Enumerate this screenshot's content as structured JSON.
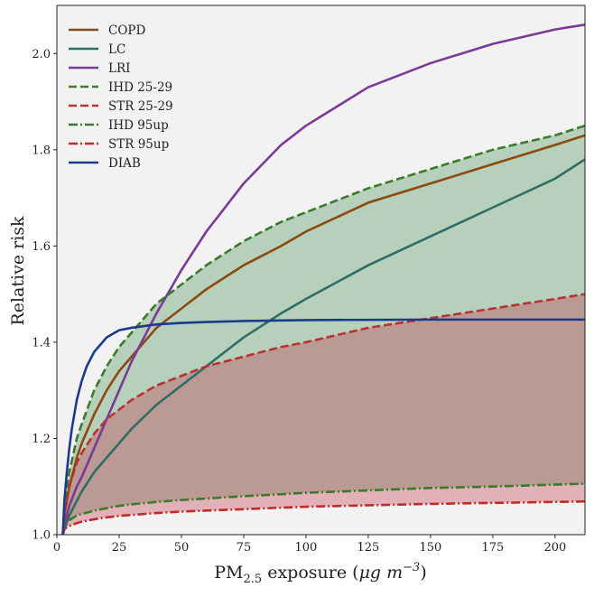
{
  "chart_data": {
    "type": "line",
    "xlabel_main": "PM",
    "xlabel_sub": "2.5",
    "xlabel_rest": " exposure (",
    "xlabel_unit": "μg m",
    "xlabel_exp": "−3",
    "xlabel_close": ")",
    "ylabel": "Relative risk",
    "xlim": [
      0,
      212
    ],
    "ylim": [
      1.0,
      2.1
    ],
    "xticks": [
      0,
      25,
      50,
      75,
      100,
      125,
      150,
      175,
      200
    ],
    "xtick_labels": [
      "0",
      "25",
      "50",
      "75",
      "100",
      "125",
      "150",
      "175",
      "200"
    ],
    "yticks": [
      1.0,
      1.2,
      1.4,
      1.6,
      1.8,
      2.0
    ],
    "ytick_labels": [
      "1.0",
      "1.2",
      "1.4",
      "1.6",
      "1.8",
      "2.0"
    ],
    "background": "#f2f2f2",
    "legend_position": "top-left",
    "fills": [
      {
        "between": [
          "IHD 25-29",
          "IHD 95up"
        ],
        "color": "#3a8a4a",
        "opacity": 0.32
      },
      {
        "between": [
          "STR 25-29",
          "STR 95up"
        ],
        "color": "#c0283a",
        "opacity": 0.32
      }
    ],
    "series": [
      {
        "name": "COPD",
        "color": "#8b4a0f",
        "dash": "solid",
        "x": [
          2.4,
          3,
          5,
          8,
          10,
          15,
          20,
          25,
          30,
          40,
          50,
          60,
          75,
          90,
          100,
          125,
          150,
          175,
          200,
          212
        ],
        "y": [
          1.0,
          1.04,
          1.1,
          1.16,
          1.19,
          1.25,
          1.3,
          1.34,
          1.37,
          1.43,
          1.47,
          1.51,
          1.56,
          1.6,
          1.63,
          1.69,
          1.73,
          1.77,
          1.81,
          1.83
        ]
      },
      {
        "name": "LC",
        "color": "#2e6e64",
        "dash": "solid",
        "x": [
          2.4,
          3,
          5,
          8,
          10,
          15,
          20,
          25,
          30,
          40,
          50,
          60,
          75,
          90,
          100,
          125,
          150,
          175,
          200,
          212
        ],
        "y": [
          1.0,
          1.01,
          1.04,
          1.07,
          1.09,
          1.13,
          1.16,
          1.19,
          1.22,
          1.27,
          1.31,
          1.35,
          1.41,
          1.46,
          1.49,
          1.56,
          1.62,
          1.68,
          1.74,
          1.78
        ]
      },
      {
        "name": "LRI",
        "color": "#7b3a96",
        "dash": "solid",
        "x": [
          2.4,
          3,
          5,
          8,
          10,
          15,
          20,
          25,
          30,
          40,
          50,
          60,
          75,
          90,
          100,
          125,
          150,
          175,
          200,
          212
        ],
        "y": [
          1.0,
          1.02,
          1.06,
          1.1,
          1.12,
          1.18,
          1.24,
          1.3,
          1.36,
          1.46,
          1.55,
          1.63,
          1.73,
          1.81,
          1.85,
          1.93,
          1.98,
          2.02,
          2.05,
          2.06
        ]
      },
      {
        "name": "IHD 25-29",
        "color": "#3a7a2a",
        "dash": "dashed",
        "x": [
          2.4,
          3,
          5,
          8,
          10,
          15,
          20,
          25,
          30,
          40,
          50,
          60,
          75,
          90,
          100,
          125,
          150,
          175,
          200,
          212
        ],
        "y": [
          1.0,
          1.06,
          1.13,
          1.2,
          1.23,
          1.3,
          1.35,
          1.39,
          1.42,
          1.48,
          1.52,
          1.56,
          1.61,
          1.65,
          1.67,
          1.72,
          1.76,
          1.8,
          1.83,
          1.85
        ]
      },
      {
        "name": "STR 25-29",
        "color": "#b83232",
        "dash": "dashed",
        "x": [
          2.4,
          3,
          5,
          8,
          10,
          15,
          20,
          25,
          30,
          40,
          50,
          60,
          75,
          90,
          100,
          125,
          150,
          175,
          200,
          212
        ],
        "y": [
          1.0,
          1.05,
          1.1,
          1.15,
          1.17,
          1.21,
          1.24,
          1.26,
          1.28,
          1.31,
          1.33,
          1.35,
          1.37,
          1.39,
          1.4,
          1.43,
          1.45,
          1.47,
          1.49,
          1.5
        ]
      },
      {
        "name": "IHD 95up",
        "color": "#3a7a2a",
        "dash": "dashdot",
        "x": [
          2.4,
          3,
          5,
          8,
          10,
          15,
          20,
          25,
          30,
          40,
          50,
          60,
          75,
          90,
          100,
          125,
          150,
          175,
          200,
          212
        ],
        "y": [
          1.0,
          1.02,
          1.03,
          1.04,
          1.043,
          1.05,
          1.055,
          1.06,
          1.063,
          1.068,
          1.072,
          1.075,
          1.08,
          1.084,
          1.087,
          1.092,
          1.097,
          1.1,
          1.104,
          1.106
        ]
      },
      {
        "name": "STR 95up",
        "color": "#c02a2a",
        "dash": "dashdot",
        "x": [
          2.4,
          3,
          5,
          8,
          10,
          15,
          20,
          25,
          30,
          40,
          50,
          60,
          75,
          90,
          100,
          125,
          150,
          175,
          200,
          212
        ],
        "y": [
          1.0,
          1.012,
          1.018,
          1.024,
          1.027,
          1.032,
          1.036,
          1.039,
          1.041,
          1.045,
          1.048,
          1.05,
          1.053,
          1.056,
          1.058,
          1.061,
          1.064,
          1.066,
          1.068,
          1.069
        ]
      },
      {
        "name": "DIAB",
        "color": "#1a3a8c",
        "dash": "solid",
        "x": [
          2.4,
          3,
          4,
          5,
          6,
          8,
          10,
          12,
          15,
          20,
          25,
          30,
          40,
          50,
          60,
          75,
          100,
          150,
          200,
          212
        ],
        "y": [
          1.0,
          1.07,
          1.13,
          1.18,
          1.22,
          1.28,
          1.32,
          1.35,
          1.38,
          1.41,
          1.425,
          1.43,
          1.437,
          1.44,
          1.442,
          1.444,
          1.446,
          1.447,
          1.447,
          1.447
        ]
      }
    ]
  }
}
